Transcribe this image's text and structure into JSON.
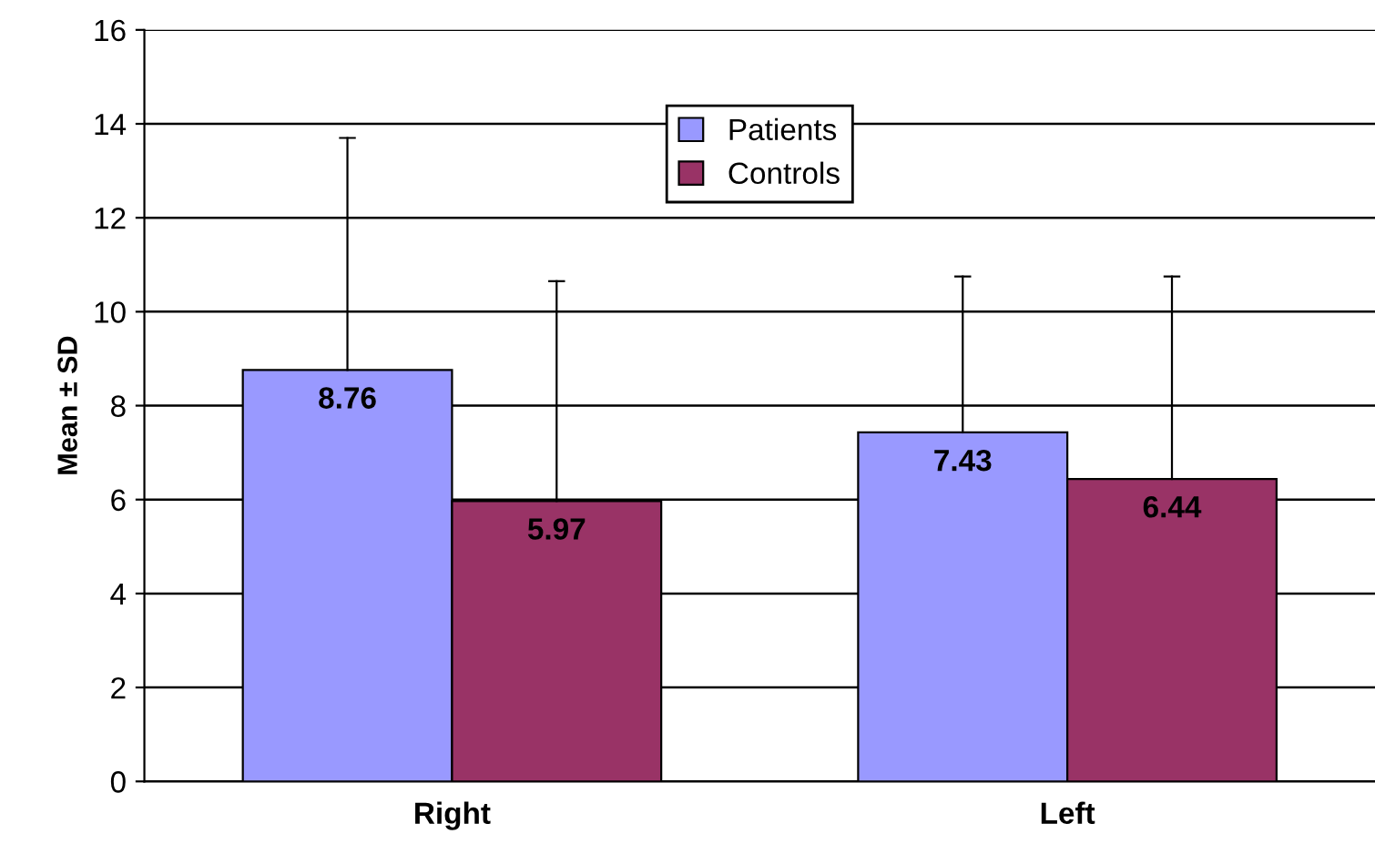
{
  "chart_data": {
    "type": "bar",
    "ylabel": "Mean ± SD",
    "categories": [
      "Right",
      "Left"
    ],
    "series": [
      {
        "name": "Patients",
        "color": "#9999ff",
        "values": [
          8.76,
          7.43
        ],
        "errors": [
          [
            8.76,
            13.7
          ],
          [
            7.43,
            10.75
          ]
        ]
      },
      {
        "name": "Controls",
        "color": "#993366",
        "values": [
          5.97,
          6.44
        ],
        "errors": [
          [
            5.97,
            10.65
          ],
          [
            6.44,
            10.75
          ]
        ]
      }
    ],
    "ylim": [
      0,
      16
    ],
    "yticks": [
      0,
      2,
      4,
      6,
      8,
      10,
      12,
      14,
      16
    ],
    "grid": "y",
    "legend": "top",
    "data_labels": true
  }
}
